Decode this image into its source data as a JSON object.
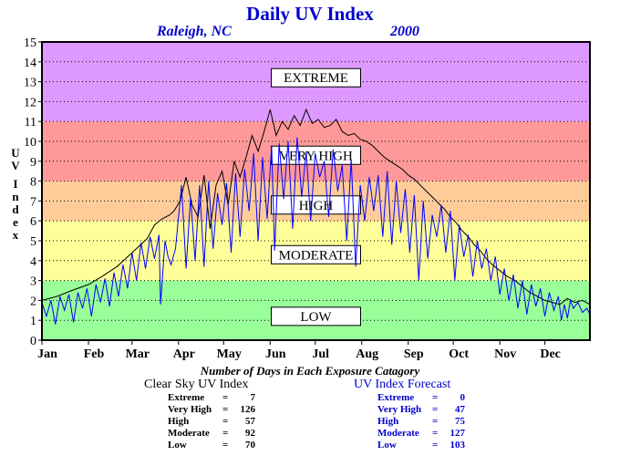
{
  "title": "Daily UV Index",
  "location": "Raleigh, NC",
  "year": "2000",
  "counts_title": "Number of Days in Each Exposure Catagory",
  "clear_sky": {
    "header": "Clear Sky UV Index",
    "rows": [
      {
        "label": "Extreme",
        "sep": "=",
        "value": "7"
      },
      {
        "label": "Very High",
        "sep": "=",
        "value": "126"
      },
      {
        "label": "High",
        "sep": "=",
        "value": "57"
      },
      {
        "label": "Moderate",
        "sep": "=",
        "value": "92"
      },
      {
        "label": "Low",
        "sep": "=",
        "value": "70"
      }
    ]
  },
  "forecast": {
    "header": "UV Index Forecast",
    "rows": [
      {
        "label": "Extreme",
        "sep": "=",
        "value": "0"
      },
      {
        "label": "Very High",
        "sep": "=",
        "value": "47"
      },
      {
        "label": "High",
        "sep": "=",
        "value": "75"
      },
      {
        "label": "Moderate",
        "sep": "=",
        "value": "127"
      },
      {
        "label": "Low",
        "sep": "=",
        "value": "103"
      }
    ]
  },
  "colors": {
    "title": "#0000cc",
    "forecast_line": "#0000ff",
    "clear_sky_line": "#000000"
  },
  "chart_data": {
    "type": "line",
    "title": "Daily UV Index",
    "ylabel": "UV Index",
    "xlabel": "",
    "ylim": [
      0,
      15
    ],
    "xlim": [
      0,
      365
    ],
    "grid": true,
    "yticks": [
      0,
      1,
      2,
      3,
      4,
      5,
      6,
      7,
      8,
      9,
      10,
      11,
      12,
      13,
      14,
      15
    ],
    "xticks": [
      {
        "label": "Jan",
        "day": 0
      },
      {
        "label": "Feb",
        "day": 31
      },
      {
        "label": "Mar",
        "day": 60
      },
      {
        "label": "Apr",
        "day": 91
      },
      {
        "label": "May",
        "day": 121
      },
      {
        "label": "Jun",
        "day": 152
      },
      {
        "label": "Jul",
        "day": 182
      },
      {
        "label": "Aug",
        "day": 213
      },
      {
        "label": "Sep",
        "day": 244
      },
      {
        "label": "Oct",
        "day": 274
      },
      {
        "label": "Nov",
        "day": 305
      },
      {
        "label": "Dec",
        "day": 335
      }
    ],
    "bands": [
      {
        "name": "LOW",
        "from": 0,
        "to": 3,
        "color": "#99ff99"
      },
      {
        "name": "MODERATE",
        "from": 3,
        "to": 6,
        "color": "#ffff99"
      },
      {
        "name": "HIGH",
        "from": 6,
        "to": 8,
        "color": "#ffcc99"
      },
      {
        "name": "VERY HIGH",
        "from": 8,
        "to": 11,
        "color": "#ff9999"
      },
      {
        "name": "EXTREME",
        "from": 11,
        "to": 15,
        "color": "#dd99ff"
      }
    ],
    "band_labels": [
      {
        "text": "EXTREME",
        "y": 13.2
      },
      {
        "text": "VERY HIGH",
        "y": 9.3
      },
      {
        "text": "HIGH",
        "y": 6.8
      },
      {
        "text": "MODERATE",
        "y": 4.3
      },
      {
        "text": "LOW",
        "y": 1.2
      }
    ],
    "series": [
      {
        "kind": "clear_sky",
        "color": "#000000",
        "points": [
          [
            0,
            2.0
          ],
          [
            10,
            2.2
          ],
          [
            20,
            2.5
          ],
          [
            31,
            2.8
          ],
          [
            40,
            3.2
          ],
          [
            50,
            3.7
          ],
          [
            60,
            4.4
          ],
          [
            70,
            5.1
          ],
          [
            75,
            5.8
          ],
          [
            80,
            6.1
          ],
          [
            85,
            6.3
          ],
          [
            88,
            6.5
          ],
          [
            92,
            7.0
          ],
          [
            96,
            8.2
          ],
          [
            100,
            6.8
          ],
          [
            104,
            6.2
          ],
          [
            108,
            8.3
          ],
          [
            112,
            5.6
          ],
          [
            116,
            7.8
          ],
          [
            120,
            8.5
          ],
          [
            124,
            6.8
          ],
          [
            128,
            9.0
          ],
          [
            132,
            8.2
          ],
          [
            136,
            9.2
          ],
          [
            140,
            10.3
          ],
          [
            144,
            9.5
          ],
          [
            148,
            10.5
          ],
          [
            152,
            11.6
          ],
          [
            156,
            10.3
          ],
          [
            160,
            11.0
          ],
          [
            164,
            10.6
          ],
          [
            168,
            11.3
          ],
          [
            172,
            10.8
          ],
          [
            176,
            11.6
          ],
          [
            180,
            10.9
          ],
          [
            184,
            11.1
          ],
          [
            188,
            10.7
          ],
          [
            192,
            10.8
          ],
          [
            196,
            11.1
          ],
          [
            200,
            10.5
          ],
          [
            204,
            10.3
          ],
          [
            208,
            10.4
          ],
          [
            212,
            10.1
          ],
          [
            216,
            10.0
          ],
          [
            220,
            9.8
          ],
          [
            224,
            9.5
          ],
          [
            228,
            9.2
          ],
          [
            232,
            9.0
          ],
          [
            236,
            8.8
          ],
          [
            240,
            8.6
          ],
          [
            244,
            8.3
          ],
          [
            248,
            8.1
          ],
          [
            252,
            7.8
          ],
          [
            256,
            7.5
          ],
          [
            260,
            7.2
          ],
          [
            264,
            6.9
          ],
          [
            268,
            6.6
          ],
          [
            272,
            6.2
          ],
          [
            276,
            5.9
          ],
          [
            280,
            5.5
          ],
          [
            284,
            5.2
          ],
          [
            288,
            4.8
          ],
          [
            292,
            4.5
          ],
          [
            296,
            4.1
          ],
          [
            300,
            3.8
          ],
          [
            305,
            3.5
          ],
          [
            310,
            3.2
          ],
          [
            315,
            3.0
          ],
          [
            320,
            2.7
          ],
          [
            325,
            2.4
          ],
          [
            330,
            2.2
          ],
          [
            335,
            2.0
          ],
          [
            340,
            1.9
          ],
          [
            345,
            1.8
          ],
          [
            350,
            2.1
          ],
          [
            355,
            1.9
          ],
          [
            360,
            2.0
          ],
          [
            365,
            1.8
          ]
        ]
      },
      {
        "kind": "forecast",
        "color": "#0000ff",
        "points": [
          [
            0,
            1.9
          ],
          [
            3,
            1.2
          ],
          [
            6,
            2.0
          ],
          [
            9,
            0.8
          ],
          [
            12,
            2.2
          ],
          [
            15,
            1.5
          ],
          [
            18,
            2.3
          ],
          [
            21,
            0.9
          ],
          [
            24,
            2.4
          ],
          [
            27,
            1.6
          ],
          [
            30,
            2.6
          ],
          [
            33,
            1.2
          ],
          [
            36,
            2.8
          ],
          [
            39,
            1.9
          ],
          [
            42,
            3.1
          ],
          [
            45,
            1.7
          ],
          [
            48,
            3.4
          ],
          [
            51,
            2.2
          ],
          [
            54,
            3.8
          ],
          [
            57,
            2.6
          ],
          [
            60,
            4.4
          ],
          [
            63,
            3.0
          ],
          [
            66,
            4.9
          ],
          [
            69,
            3.6
          ],
          [
            72,
            5.2
          ],
          [
            75,
            4.1
          ],
          [
            78,
            5.3
          ],
          [
            79,
            1.8
          ],
          [
            82,
            5.0
          ],
          [
            84,
            4.2
          ],
          [
            86,
            3.8
          ],
          [
            89,
            4.6
          ],
          [
            93,
            7.8
          ],
          [
            96,
            3.6
          ],
          [
            99,
            7.2
          ],
          [
            102,
            4.0
          ],
          [
            105,
            7.8
          ],
          [
            108,
            3.7
          ],
          [
            111,
            8.0
          ],
          [
            114,
            4.6
          ],
          [
            117,
            7.4
          ],
          [
            120,
            5.8
          ],
          [
            123,
            7.9
          ],
          [
            126,
            4.4
          ],
          [
            129,
            8.4
          ],
          [
            132,
            5.2
          ],
          [
            135,
            8.6
          ],
          [
            138,
            6.5
          ],
          [
            141,
            9.4
          ],
          [
            144,
            5.0
          ],
          [
            147,
            9.2
          ],
          [
            150,
            6.1
          ],
          [
            153,
            9.8
          ],
          [
            155,
            4.5
          ],
          [
            158,
            9.9
          ],
          [
            161,
            7.1
          ],
          [
            164,
            10.0
          ],
          [
            167,
            5.6
          ],
          [
            170,
            10.2
          ],
          [
            173,
            7.2
          ],
          [
            176,
            9.5
          ],
          [
            179,
            6.0
          ],
          [
            182,
            9.4
          ],
          [
            185,
            8.2
          ],
          [
            188,
            9.0
          ],
          [
            191,
            6.2
          ],
          [
            194,
            9.6
          ],
          [
            197,
            7.5
          ],
          [
            200,
            8.8
          ],
          [
            203,
            5.0
          ],
          [
            206,
            9.1
          ],
          [
            209,
            3.7
          ],
          [
            212,
            7.8
          ],
          [
            215,
            6.0
          ],
          [
            218,
            8.2
          ],
          [
            221,
            6.5
          ],
          [
            224,
            8.3
          ],
          [
            227,
            5.2
          ],
          [
            230,
            8.5
          ],
          [
            233,
            4.8
          ],
          [
            236,
            8.0
          ],
          [
            239,
            5.4
          ],
          [
            242,
            7.6
          ],
          [
            245,
            4.4
          ],
          [
            248,
            7.3
          ],
          [
            251,
            3.0
          ],
          [
            254,
            7.0
          ],
          [
            257,
            4.1
          ],
          [
            260,
            6.3
          ],
          [
            263,
            5.2
          ],
          [
            266,
            6.8
          ],
          [
            269,
            4.4
          ],
          [
            272,
            6.5
          ],
          [
            275,
            3.0
          ],
          [
            278,
            5.8
          ],
          [
            281,
            4.2
          ],
          [
            284,
            5.3
          ],
          [
            287,
            3.2
          ],
          [
            290,
            5.0
          ],
          [
            293,
            3.6
          ],
          [
            296,
            4.6
          ],
          [
            299,
            3.0
          ],
          [
            302,
            4.2
          ],
          [
            305,
            2.3
          ],
          [
            308,
            3.6
          ],
          [
            311,
            2.0
          ],
          [
            314,
            3.3
          ],
          [
            317,
            1.6
          ],
          [
            320,
            3.0
          ],
          [
            323,
            1.3
          ],
          [
            326,
            2.8
          ],
          [
            329,
            1.7
          ],
          [
            332,
            2.6
          ],
          [
            335,
            1.2
          ],
          [
            338,
            2.4
          ],
          [
            341,
            1.5
          ],
          [
            344,
            2.2
          ],
          [
            346,
            1.0
          ],
          [
            348,
            1.8
          ],
          [
            350,
            1.1
          ],
          [
            352,
            2.0
          ],
          [
            354,
            1.6
          ],
          [
            357,
            1.9
          ],
          [
            360,
            1.4
          ],
          [
            363,
            1.6
          ],
          [
            365,
            1.3
          ]
        ]
      }
    ]
  }
}
